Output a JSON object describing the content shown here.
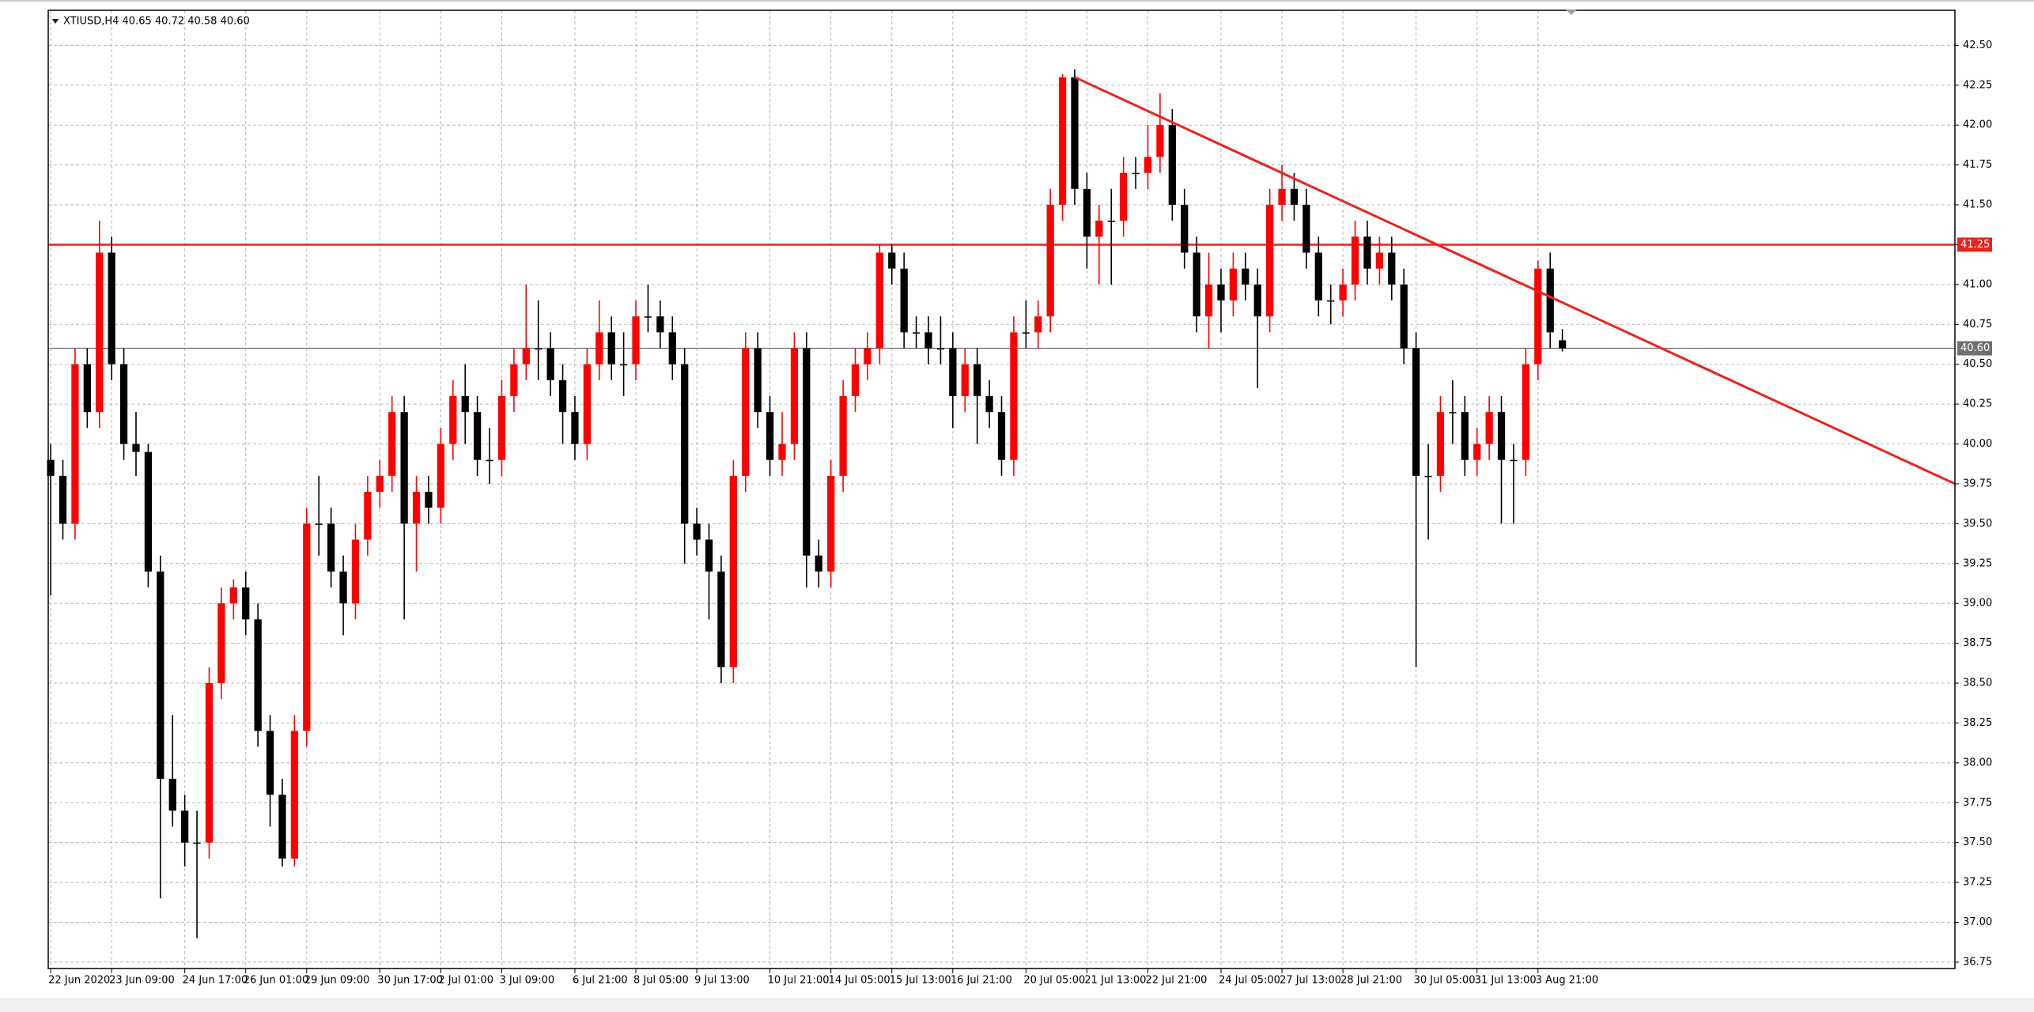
{
  "chart_data": {
    "type": "candlestick",
    "title": "XTIUSD,H4 40.65 40.72 40.58 40.60",
    "open": [
      39.9,
      39.8,
      39.5,
      40.5,
      40.2,
      41.2,
      40.5,
      40.0,
      39.95,
      39.2,
      37.9,
      37.7,
      37.5,
      37.5,
      38.5,
      39.0,
      39.1,
      38.9,
      38.2,
      37.8,
      37.4,
      38.2,
      39.5,
      39.5,
      39.2,
      39.0,
      39.4,
      39.7,
      39.8,
      40.2,
      39.5,
      39.7,
      39.6,
      40.0,
      40.3,
      40.2,
      39.9,
      39.9,
      40.3,
      40.5,
      40.6,
      40.6,
      40.4,
      40.2,
      40.0,
      40.5,
      40.7,
      40.5,
      40.5,
      40.8,
      40.8,
      40.7,
      40.5,
      39.5,
      39.4,
      39.2,
      38.6,
      39.8,
      40.6,
      40.2,
      39.9,
      40.0,
      40.6,
      39.3,
      39.2,
      39.8,
      40.3,
      40.5,
      40.6,
      41.2,
      41.1,
      40.7,
      40.7,
      40.6,
      40.6,
      40.3,
      40.5,
      40.3,
      40.2,
      39.9,
      40.7,
      40.7,
      40.8,
      41.5,
      42.3,
      41.6,
      41.3,
      41.4,
      41.4,
      41.7,
      41.7,
      41.8,
      42.0,
      41.5,
      41.2,
      40.8,
      41.0,
      40.9,
      41.1,
      41.0,
      40.8,
      41.5,
      41.6,
      41.5,
      41.2,
      40.9,
      40.9,
      41.0,
      41.3,
      41.1,
      41.2,
      41.0,
      40.6,
      39.8,
      39.8,
      40.2,
      40.2,
      39.9,
      40.0,
      40.2,
      39.9,
      39.9,
      40.5,
      41.1,
      40.65
    ],
    "high": [
      40.0,
      39.9,
      40.6,
      40.6,
      41.4,
      41.3,
      40.6,
      40.2,
      40.0,
      39.3,
      38.3,
      37.8,
      37.7,
      38.6,
      39.1,
      39.15,
      39.2,
      39.0,
      38.3,
      37.9,
      38.3,
      39.6,
      39.8,
      39.6,
      39.3,
      39.5,
      39.8,
      39.9,
      40.3,
      40.3,
      39.8,
      39.8,
      40.1,
      40.4,
      40.5,
      40.3,
      40.1,
      40.4,
      40.6,
      41.0,
      40.9,
      40.7,
      40.5,
      40.3,
      40.6,
      40.9,
      40.8,
      40.7,
      40.9,
      41.0,
      40.9,
      40.8,
      40.6,
      39.6,
      39.5,
      39.3,
      39.9,
      40.7,
      40.7,
      40.3,
      40.2,
      40.7,
      40.7,
      39.4,
      39.9,
      40.4,
      40.6,
      40.7,
      41.25,
      41.25,
      41.2,
      40.8,
      40.8,
      40.8,
      40.7,
      40.6,
      40.6,
      40.4,
      40.3,
      40.8,
      40.9,
      40.9,
      41.6,
      42.32,
      42.35,
      41.7,
      41.5,
      41.6,
      41.8,
      41.8,
      42.0,
      42.2,
      42.1,
      41.6,
      41.3,
      41.2,
      41.1,
      41.2,
      41.2,
      41.1,
      41.6,
      41.75,
      41.7,
      41.6,
      41.3,
      41.0,
      41.1,
      41.4,
      41.4,
      41.3,
      41.3,
      41.1,
      40.7,
      40.0,
      40.3,
      40.4,
      40.3,
      40.1,
      40.3,
      40.3,
      40.0,
      40.6,
      41.15,
      41.2,
      40.72
    ],
    "low": [
      39.05,
      39.4,
      39.4,
      40.1,
      40.1,
      40.4,
      39.9,
      39.8,
      39.1,
      37.15,
      37.6,
      37.35,
      36.9,
      37.4,
      38.4,
      38.9,
      38.8,
      38.1,
      37.6,
      37.35,
      37.35,
      38.1,
      39.3,
      39.1,
      38.8,
      38.9,
      39.3,
      39.6,
      39.7,
      38.9,
      39.2,
      39.5,
      39.5,
      39.9,
      40.0,
      39.8,
      39.75,
      39.8,
      40.2,
      40.4,
      40.4,
      40.3,
      40.0,
      39.9,
      39.9,
      40.4,
      40.4,
      40.3,
      40.4,
      40.7,
      40.6,
      40.4,
      39.25,
      39.3,
      38.9,
      38.5,
      38.5,
      39.7,
      40.1,
      39.8,
      39.8,
      39.9,
      39.1,
      39.1,
      39.1,
      39.7,
      40.2,
      40.4,
      40.5,
      41.0,
      40.6,
      40.6,
      40.5,
      40.5,
      40.1,
      40.2,
      40.0,
      40.1,
      39.8,
      39.8,
      40.6,
      40.6,
      40.7,
      41.4,
      41.5,
      41.1,
      41.0,
      41.0,
      41.3,
      41.6,
      41.6,
      41.7,
      41.4,
      41.1,
      40.7,
      40.6,
      40.7,
      40.8,
      40.9,
      40.35,
      40.7,
      41.4,
      41.4,
      41.1,
      40.8,
      40.75,
      40.8,
      40.9,
      41.0,
      41.0,
      40.9,
      40.5,
      38.6,
      39.4,
      39.7,
      40.0,
      39.8,
      39.8,
      39.9,
      39.5,
      39.5,
      39.8,
      40.4,
      40.6,
      40.58
    ],
    "close": [
      39.8,
      39.5,
      40.5,
      40.2,
      41.2,
      40.5,
      40.0,
      39.95,
      39.2,
      37.9,
      37.7,
      37.5,
      37.5,
      38.5,
      39.0,
      39.1,
      38.9,
      38.2,
      37.8,
      37.4,
      38.2,
      39.5,
      39.5,
      39.2,
      39.0,
      39.4,
      39.7,
      39.8,
      40.2,
      39.5,
      39.7,
      39.6,
      40.0,
      40.3,
      40.2,
      39.9,
      39.9,
      40.3,
      40.5,
      40.6,
      40.6,
      40.4,
      40.2,
      40.0,
      40.5,
      40.7,
      40.5,
      40.5,
      40.8,
      40.8,
      40.7,
      40.5,
      39.5,
      39.4,
      39.2,
      38.6,
      39.8,
      40.6,
      40.2,
      39.9,
      40.0,
      40.6,
      39.3,
      39.2,
      39.8,
      40.3,
      40.5,
      40.6,
      41.2,
      41.1,
      40.7,
      40.7,
      40.6,
      40.6,
      40.3,
      40.5,
      40.3,
      40.2,
      39.9,
      40.7,
      40.7,
      40.8,
      41.5,
      42.3,
      41.6,
      41.3,
      41.4,
      41.4,
      41.7,
      41.7,
      41.8,
      42.0,
      41.5,
      41.2,
      40.8,
      41.0,
      40.9,
      41.1,
      41.0,
      40.8,
      41.5,
      41.6,
      41.5,
      41.2,
      40.9,
      40.9,
      41.0,
      41.3,
      41.1,
      41.2,
      41.0,
      40.6,
      39.8,
      39.8,
      40.2,
      40.2,
      39.9,
      40.0,
      40.2,
      39.9,
      39.9,
      40.5,
      41.1,
      40.7,
      40.6
    ],
    "xlim": [
      -0.2,
      156.2
    ],
    "xticks": [
      {
        "value": 0,
        "label": "22 Jun 2020"
      },
      {
        "value": 5,
        "label": "23 Jun 09:00"
      },
      {
        "value": 11,
        "label": "24 Jun 17:00"
      },
      {
        "value": 16,
        "label": "26 Jun 01:00"
      },
      {
        "value": 21,
        "label": "29 Jun 09:00"
      },
      {
        "value": 27,
        "label": "30 Jun 17:00"
      },
      {
        "value": 32,
        "label": "2 Jul 01:00"
      },
      {
        "value": 37,
        "label": "3 Jul 09:00"
      },
      {
        "value": 43,
        "label": "6 Jul 21:00"
      },
      {
        "value": 48,
        "label": "8 Jul 05:00"
      },
      {
        "value": 53,
        "label": "9 Jul 13:00"
      },
      {
        "value": 59,
        "label": "10 Jul 21:00"
      },
      {
        "value": 64,
        "label": "14 Jul 05:00"
      },
      {
        "value": 69,
        "label": "15 Jul 13:00"
      },
      {
        "value": 74,
        "label": "16 Jul 21:00"
      },
      {
        "value": 80,
        "label": "20 Jul 05:00"
      },
      {
        "value": 85,
        "label": "21 Jul 13:00"
      },
      {
        "value": 90,
        "label": "22 Jul 21:00"
      },
      {
        "value": 96,
        "label": "24 Jul 05:00"
      },
      {
        "value": 101,
        "label": "27 Jul 13:00"
      },
      {
        "value": 106,
        "label": "28 Jul 21:00"
      },
      {
        "value": 112,
        "label": "30 Jul 05:00"
      },
      {
        "value": 117,
        "label": "31 Jul 13:00"
      },
      {
        "value": 122,
        "label": "3 Aug 21:00"
      }
    ],
    "ylim": [
      36.71,
      42.72
    ],
    "yticks": [
      36.75,
      {
        "value": 37,
        "label": "37.00"
      },
      37.25,
      {
        "value": 37.5,
        "label": "37.50"
      },
      37.75,
      {
        "value": 38,
        "label": "38.00"
      },
      38.25,
      {
        "value": 38.5,
        "label": "38.50"
      },
      38.75,
      {
        "value": 39,
        "label": "39.00"
      },
      39.25,
      {
        "value": 39.5,
        "label": "39.50"
      },
      39.75,
      {
        "value": 40,
        "label": "40.00"
      },
      40.25,
      {
        "value": 40.5,
        "label": "40.50"
      },
      40.75,
      {
        "value": 41,
        "label": "41.00"
      },
      41.25,
      {
        "value": 41.5,
        "label": "41.50"
      },
      41.75,
      {
        "value": 42,
        "label": "42.00"
      },
      42.25,
      {
        "value": 42.5,
        "label": "42.50"
      }
    ],
    "grid": true,
    "grid_color": "#b8b8b8",
    "up_color": "#ff0000",
    "down_color": "#000000",
    "hlines": [
      {
        "value": 41.25,
        "label": "41.25",
        "color": "#e8241c"
      },
      {
        "value": 40.6,
        "label": "40.60",
        "color": "#707070"
      }
    ],
    "trendline": {
      "x": [
        84,
        156.2
      ],
      "y": [
        42.3,
        39.75
      ],
      "color": "#e8241c"
    }
  }
}
